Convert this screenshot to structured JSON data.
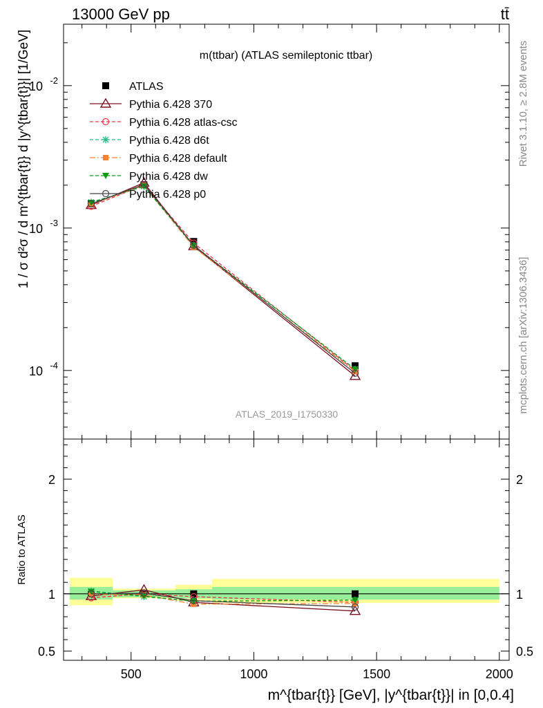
{
  "header": {
    "energy_label": "13000 GeV pp",
    "process_label": "tt̄"
  },
  "side_labels": {
    "rivet": "Rivet 3.1.10, ≥ 2.8M events",
    "mcplots": "mcplots.cern.ch [arXiv:1306.3436]"
  },
  "chart_data": [
    {
      "type": "line",
      "panel": "main",
      "title": "m(ttbar) (ATLAS semileptonic ttbar)",
      "watermark": "ATLAS_2019_I1750330",
      "ylabel": "1 / σ d²σ / d m^{tbar{t}} d |y^{tbar{t}}| [1/GeV]",
      "yscale": "log",
      "ylim": [
        3.3e-05,
        0.027
      ],
      "xlim": [
        225,
        2040
      ],
      "y_tick_labels": [
        "10^-4",
        "10^-3",
        "10^-2"
      ],
      "legend_position": "top-left",
      "x": [
        337.5,
        552.5,
        755,
        1412.5
      ],
      "x_bin_edges": [
        250,
        425,
        680,
        830,
        2000
      ],
      "series": [
        {
          "name": "ATLAS",
          "color": "#000000",
          "marker": "square",
          "values": [
            0.00148,
            0.00201,
            0.000805,
            0.000108
          ]
        },
        {
          "name": "Pythia 6.428 370",
          "color": "#7a1020",
          "marker": "triangle-open",
          "line": "solid",
          "values": [
            0.00145,
            0.00208,
            0.000746,
            9.15e-05
          ]
        },
        {
          "name": "Pythia 6.428 atlas-csc",
          "color": "#e8334a",
          "marker": "circle-open",
          "line": "dashed",
          "values": [
            0.00142,
            0.00201,
            0.000785,
            9.95e-05
          ]
        },
        {
          "name": "Pythia 6.428 d6t",
          "color": "#22bb88",
          "marker": "star",
          "line": "dashed",
          "values": [
            0.00152,
            0.00196,
            0.000753,
            0.000102
          ]
        },
        {
          "name": "Pythia 6.428 default",
          "color": "#f58231",
          "marker": "square",
          "line": "dashdot",
          "values": [
            0.00147,
            0.00199,
            0.000735,
            9.85e-05
          ]
        },
        {
          "name": "Pythia 6.428 dw",
          "color": "#119911",
          "marker": "triangle-down",
          "line": "dashed",
          "values": [
            0.00151,
            0.00197,
            0.000752,
            0.000102
          ]
        },
        {
          "name": "Pythia 6.428 p0",
          "color": "#444444",
          "marker": "circle-open",
          "line": "solid",
          "values": [
            0.00148,
            0.00202,
            0.000757,
            9.55e-05
          ]
        }
      ]
    },
    {
      "type": "line",
      "panel": "ratio",
      "ylabel": "Ratio to ATLAS",
      "xlabel": "m^{tbar{t}} [GeV], |y^{tbar{t}}| in [0,0.4]",
      "xlim": [
        225,
        2040
      ],
      "ylim": [
        0.42,
        2.35
      ],
      "x_ticks": [
        500,
        1000,
        1500,
        2000
      ],
      "y_ticks": [
        0.5,
        1,
        2
      ],
      "bands": {
        "x_bin_edges": [
          250,
          425,
          680,
          830,
          2000
        ],
        "inner": [
          [
            0.95,
            1.06
          ],
          [
            0.97,
            1.03
          ],
          [
            0.96,
            1.04
          ],
          [
            0.95,
            1.06
          ]
        ],
        "outer": [
          [
            0.9,
            1.14
          ],
          [
            0.96,
            1.045
          ],
          [
            0.94,
            1.08
          ],
          [
            0.92,
            1.13
          ]
        ]
      },
      "x": [
        337.5,
        552.5,
        755,
        1412.5
      ],
      "series": [
        {
          "name": "Pythia 6.428 370",
          "color": "#7a1020",
          "values": [
            0.98,
            1.035,
            0.925,
            0.85
          ]
        },
        {
          "name": "Pythia 6.428 atlas-csc",
          "color": "#e8334a",
          "values": [
            0.965,
            1.0,
            0.975,
            0.925
          ]
        },
        {
          "name": "Pythia 6.428 d6t",
          "color": "#22bb88",
          "values": [
            1.025,
            0.975,
            0.935,
            0.945
          ]
        },
        {
          "name": "Pythia 6.428 default",
          "color": "#f58231",
          "values": [
            0.995,
            0.99,
            0.91,
            0.915
          ]
        },
        {
          "name": "Pythia 6.428 dw",
          "color": "#119911",
          "values": [
            1.02,
            0.98,
            0.935,
            0.945
          ]
        },
        {
          "name": "Pythia 6.428 p0",
          "color": "#444444",
          "values": [
            1.0,
            1.005,
            0.94,
            0.885
          ]
        }
      ]
    }
  ]
}
